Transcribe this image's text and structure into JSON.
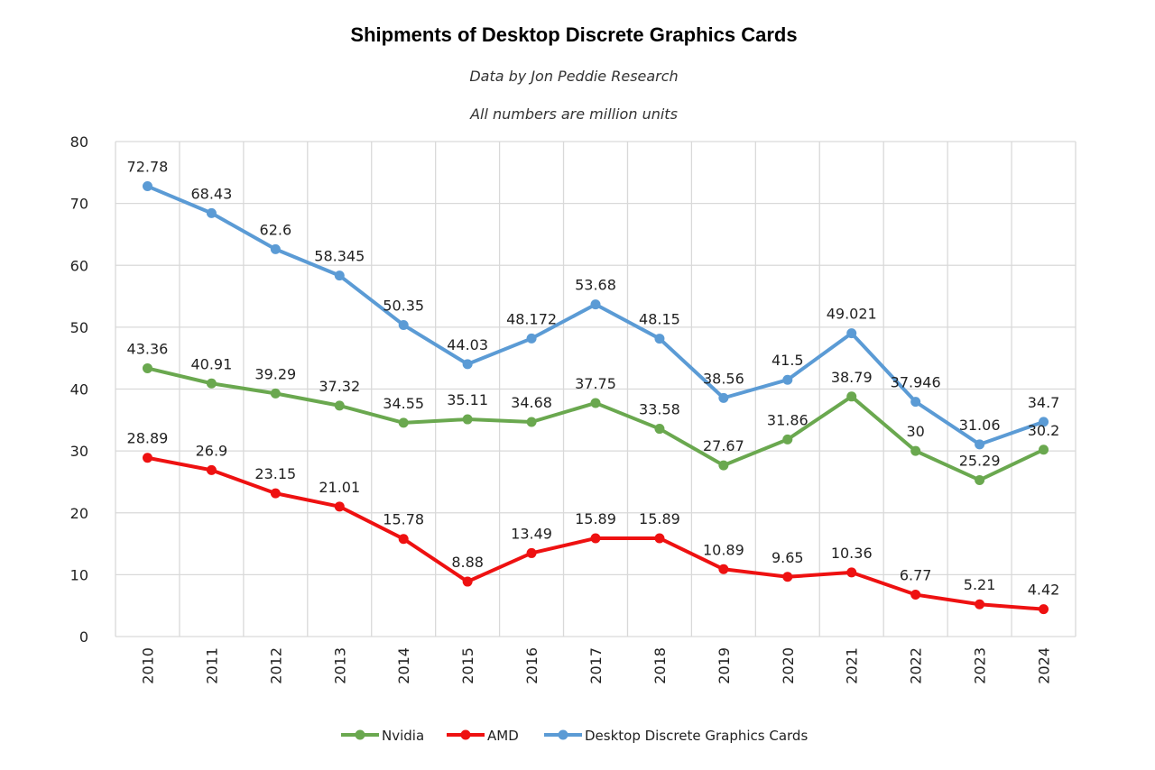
{
  "chart_data": {
    "type": "line",
    "title": "Shipments of Desktop Discrete Graphics Cards",
    "subtitle": "Data by Jon Peddie Research",
    "note": "All numbers are million units",
    "xlabel": "",
    "ylabel": "",
    "ylim": [
      0,
      80
    ],
    "yticks": [
      "0",
      "10",
      "20",
      "30",
      "40",
      "50",
      "60",
      "70",
      "80"
    ],
    "grid": true,
    "legend_position": "bottom",
    "categories": [
      "2010",
      "2011",
      "2012",
      "2013",
      "2014",
      "2015",
      "2016",
      "2017",
      "2018",
      "2019",
      "2020",
      "2021",
      "2022",
      "2023",
      "2024"
    ],
    "series": [
      {
        "name": "Nvidia",
        "color": "#6aa84f",
        "values": [
          43.36,
          40.91,
          39.29,
          37.32,
          34.55,
          35.11,
          34.68,
          37.75,
          33.58,
          27.67,
          31.86,
          38.79,
          30,
          25.29,
          30.2
        ],
        "labels": [
          "43.36",
          "40.91",
          "39.29",
          "37.32",
          "34.55",
          "35.11",
          "34.68",
          "37.75",
          "33.58",
          "27.67",
          "31.86",
          "38.79",
          "30",
          "25.29",
          "30.2"
        ]
      },
      {
        "name": "AMD",
        "color": "#ee1111",
        "values": [
          28.89,
          26.9,
          23.15,
          21.01,
          15.78,
          8.88,
          13.49,
          15.89,
          15.89,
          10.89,
          9.65,
          10.36,
          6.77,
          5.21,
          4.42
        ],
        "labels": [
          "28.89",
          "26.9",
          "23.15",
          "21.01",
          "15.78",
          "8.88",
          "13.49",
          "15.89",
          "15.89",
          "10.89",
          "9.65",
          "10.36",
          "6.77",
          "5.21",
          "4.42"
        ]
      },
      {
        "name": "Desktop Discrete Graphics Cards",
        "color": "#5b9bd5",
        "values": [
          72.78,
          68.43,
          62.6,
          58.345,
          50.35,
          44.03,
          48.172,
          53.68,
          48.15,
          38.56,
          41.5,
          49.021,
          37.946,
          31.06,
          34.7
        ],
        "labels": [
          "72.78",
          "68.43",
          "62.6",
          "58.345",
          "50.35",
          "44.03",
          "48.172",
          "53.68",
          "48.15",
          "38.56",
          "41.5",
          "49.021",
          "37.946",
          "31.06",
          "34.7"
        ]
      }
    ]
  }
}
